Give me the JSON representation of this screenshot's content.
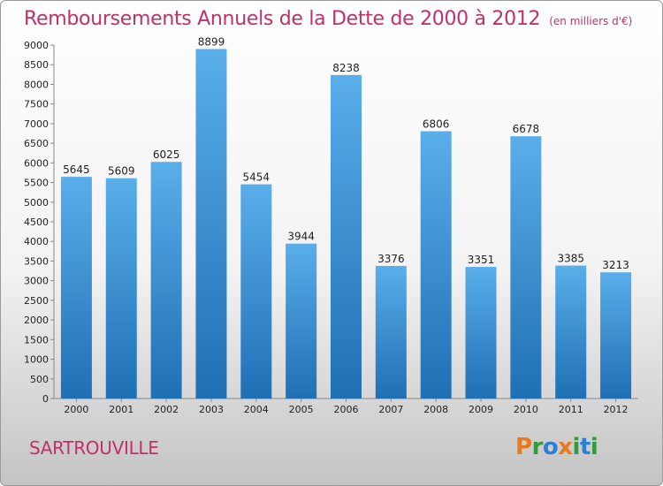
{
  "header": {
    "title": "Remboursements Annuels de la Dette de 2000 à 2012",
    "unit": "(en milliers d'€)"
  },
  "footer": {
    "city": "SARTROUVILLE",
    "brand": "Proxiti"
  },
  "colors": {
    "title": "#c0306a",
    "bar_top": "#5aaeea",
    "bar_bottom": "#1f6fb5"
  },
  "chart_data": {
    "type": "bar",
    "title": "Remboursements Annuels de la Dette de 2000 à 2012",
    "xlabel": "",
    "ylabel": "",
    "categories": [
      "2000",
      "2001",
      "2002",
      "2003",
      "2004",
      "2005",
      "2006",
      "2007",
      "2008",
      "2009",
      "2010",
      "2011",
      "2012"
    ],
    "values": [
      5645,
      5609,
      6025,
      8899,
      5454,
      3944,
      8238,
      3376,
      6806,
      3351,
      6678,
      3385,
      3213
    ],
    "ylim": [
      0,
      9000
    ],
    "yticks": [
      0,
      500,
      1000,
      1500,
      2000,
      2500,
      3000,
      3500,
      4000,
      4500,
      5000,
      5500,
      6000,
      6500,
      7000,
      7500,
      8000,
      8500,
      9000
    ],
    "grid": false,
    "legend": "none"
  }
}
